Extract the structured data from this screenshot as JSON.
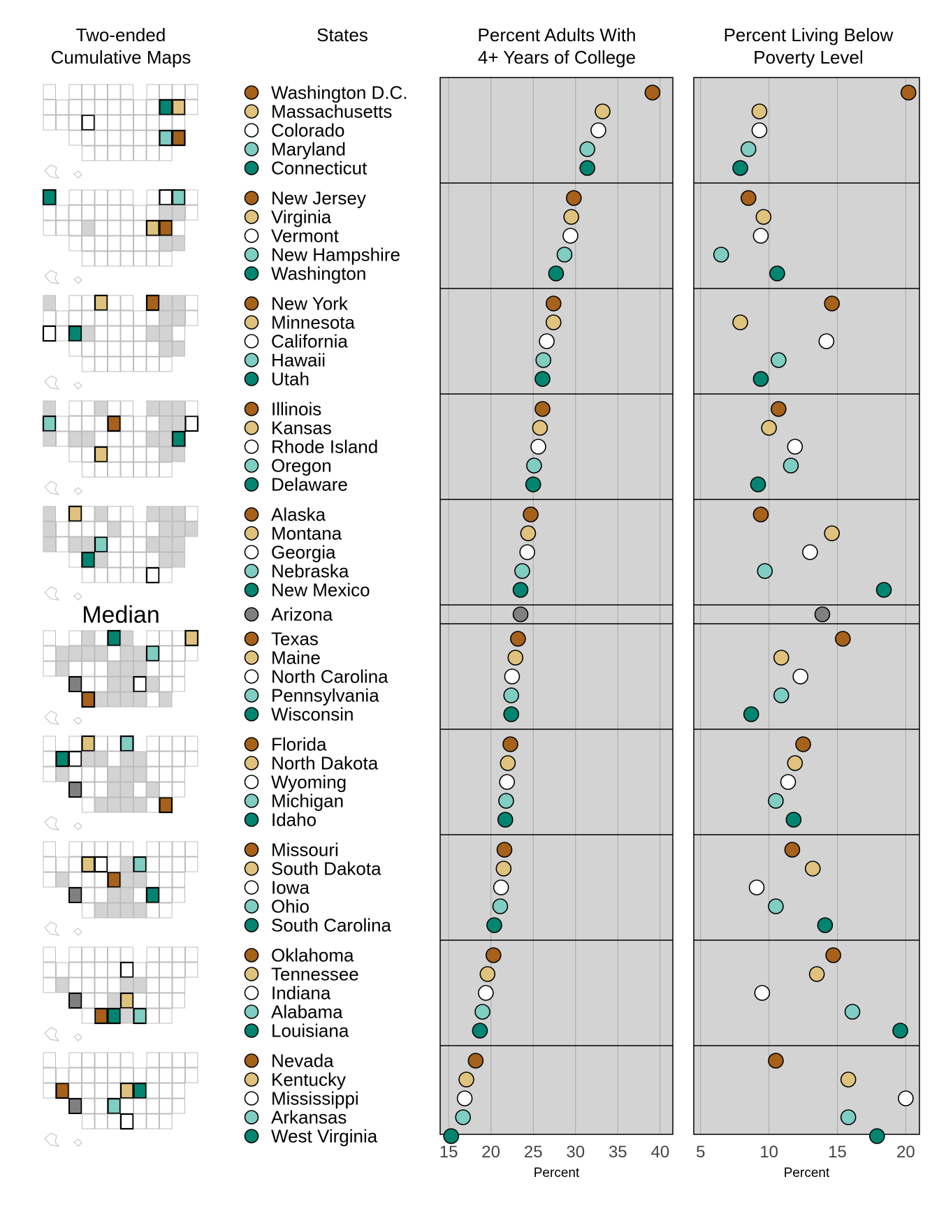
{
  "headers": {
    "maps": [
      "Two-ended",
      "Cumulative Maps"
    ],
    "states": "States",
    "college": [
      "Percent Adults With",
      "4+ Years of College"
    ],
    "poverty": [
      "Percent Living Below",
      "Poverty Level"
    ]
  },
  "median_label": "Median",
  "colors": [
    "#A6611A",
    "#DFC27D",
    "#FFFFFF",
    "#80CDC1",
    "#018571"
  ],
  "median_color": "#808080",
  "chart_data": {
    "type": "linked-micromap-dotplot",
    "panels": [
      {
        "name": "Percent Adults With 4+ Years of College",
        "xlabel": "Percent",
        "xlim": [
          14,
          41.5
        ],
        "ticks": [
          15,
          20,
          25,
          30,
          35,
          40
        ]
      },
      {
        "name": "Percent Living Below Poverty Level",
        "xlabel": "Percent",
        "xlim": [
          4.5,
          21
        ],
        "ticks": [
          5,
          10,
          15,
          20
        ]
      }
    ],
    "groups": [
      [
        {
          "state": "Washington D.C.",
          "college": 39.1,
          "poverty": 20.2
        },
        {
          "state": "Massachusetts",
          "college": 33.2,
          "poverty": 9.3
        },
        {
          "state": "Colorado",
          "college": 32.7,
          "poverty": 9.3
        },
        {
          "state": "Maryland",
          "college": 31.4,
          "poverty": 8.5
        },
        {
          "state": "Connecticut",
          "college": 31.4,
          "poverty": 7.9
        }
      ],
      [
        {
          "state": "New Jersey",
          "college": 29.8,
          "poverty": 8.5
        },
        {
          "state": "Virginia",
          "college": 29.5,
          "poverty": 9.6
        },
        {
          "state": "Vermont",
          "college": 29.4,
          "poverty": 9.4
        },
        {
          "state": "New Hampshire",
          "college": 28.7,
          "poverty": 6.5
        },
        {
          "state": "Washington",
          "college": 27.7,
          "poverty": 10.6
        }
      ],
      [
        {
          "state": "New York",
          "college": 27.4,
          "poverty": 14.6
        },
        {
          "state": "Minnesota",
          "college": 27.4,
          "poverty": 7.9
        },
        {
          "state": "California",
          "college": 26.6,
          "poverty": 14.2
        },
        {
          "state": "Hawaii",
          "college": 26.2,
          "poverty": 10.7
        },
        {
          "state": "Utah",
          "college": 26.1,
          "poverty": 9.4
        }
      ],
      [
        {
          "state": "Illinois",
          "college": 26.1,
          "poverty": 10.7
        },
        {
          "state": "Kansas",
          "college": 25.8,
          "poverty": 10.0
        },
        {
          "state": "Rhode Island",
          "college": 25.6,
          "poverty": 11.9
        },
        {
          "state": "Oregon",
          "college": 25.1,
          "poverty": 11.6
        },
        {
          "state": "Delaware",
          "college": 25.0,
          "poverty": 9.2
        }
      ],
      [
        {
          "state": "Alaska",
          "college": 24.7,
          "poverty": 9.4
        },
        {
          "state": "Montana",
          "college": 24.4,
          "poverty": 14.6
        },
        {
          "state": "Georgia",
          "college": 24.3,
          "poverty": 13.0
        },
        {
          "state": "Nebraska",
          "college": 23.7,
          "poverty": 9.7
        },
        {
          "state": "New Mexico",
          "college": 23.5,
          "poverty": 18.4
        }
      ],
      [
        {
          "state": "Arizona",
          "college": 23.5,
          "poverty": 13.9,
          "median": true
        }
      ],
      [
        {
          "state": "Texas",
          "college": 23.2,
          "poverty": 15.4
        },
        {
          "state": "Maine",
          "college": 22.9,
          "poverty": 10.9
        },
        {
          "state": "North Carolina",
          "college": 22.5,
          "poverty": 12.3
        },
        {
          "state": "Pennsylvania",
          "college": 22.4,
          "poverty": 10.9
        },
        {
          "state": "Wisconsin",
          "college": 22.4,
          "poverty": 8.7
        }
      ],
      [
        {
          "state": "Florida",
          "college": 22.3,
          "poverty": 12.5
        },
        {
          "state": "North Dakota",
          "college": 22.0,
          "poverty": 11.9
        },
        {
          "state": "Wyoming",
          "college": 21.9,
          "poverty": 11.4
        },
        {
          "state": "Michigan",
          "college": 21.8,
          "poverty": 10.5
        },
        {
          "state": "Idaho",
          "college": 21.7,
          "poverty": 11.8
        }
      ],
      [
        {
          "state": "Missouri",
          "college": 21.6,
          "poverty": 11.7
        },
        {
          "state": "South Dakota",
          "college": 21.5,
          "poverty": 13.2
        },
        {
          "state": "Iowa",
          "college": 21.2,
          "poverty": 9.1
        },
        {
          "state": "Ohio",
          "college": 21.1,
          "poverty": 10.5
        },
        {
          "state": "South Carolina",
          "college": 20.4,
          "poverty": 14.1
        }
      ],
      [
        {
          "state": "Oklahoma",
          "college": 20.3,
          "poverty": 14.7
        },
        {
          "state": "Tennessee",
          "college": 19.6,
          "poverty": 13.5
        },
        {
          "state": "Indiana",
          "college": 19.4,
          "poverty": 9.5
        },
        {
          "state": "Alabama",
          "college": 19.0,
          "poverty": 16.1
        },
        {
          "state": "Louisiana",
          "college": 18.7,
          "poverty": 19.6
        }
      ],
      [
        {
          "state": "Nevada",
          "college": 18.2,
          "poverty": 10.5
        },
        {
          "state": "Kentucky",
          "college": 17.1,
          "poverty": 15.8
        },
        {
          "state": "Mississippi",
          "college": 16.9,
          "poverty": 20.0
        },
        {
          "state": "Arkansas",
          "college": 16.7,
          "poverty": 15.8
        },
        {
          "state": "West Virginia",
          "college": 15.3,
          "poverty": 17.9
        }
      ]
    ]
  }
}
